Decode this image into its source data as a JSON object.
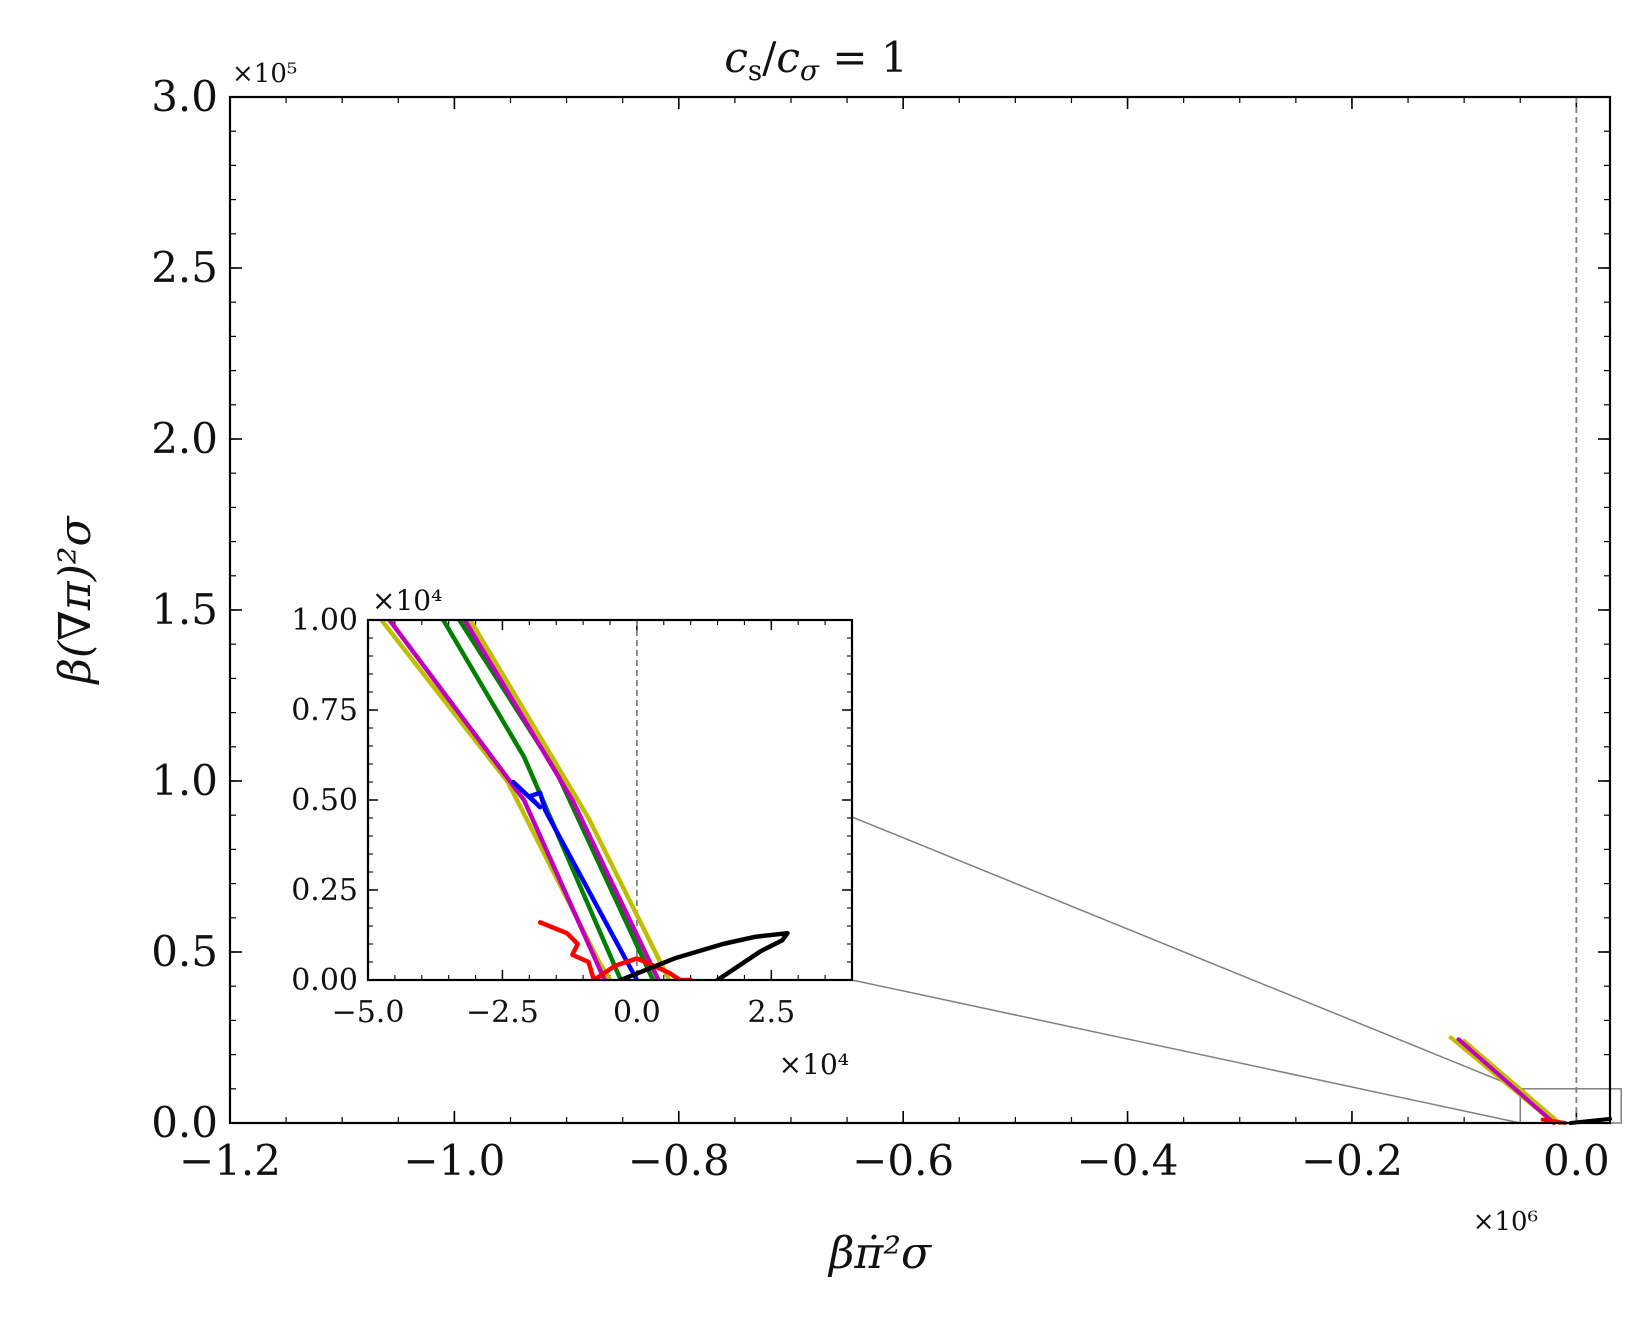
{
  "chart_data": {
    "type": "line",
    "title": "c_s/c_σ = 1",
    "title_parts": {
      "a": "c",
      "a_sub": "s",
      "slash": "/",
      "b": "c",
      "b_sub": "σ",
      "eq": " = 1"
    },
    "xlabel": "βπ̇²σ",
    "ylabel": "β(∇π)²σ",
    "x_multiplier": "×10⁶",
    "y_multiplier": "×10⁵",
    "xlim": [
      -1.2,
      0.03
    ],
    "ylim": [
      0.0,
      3.0
    ],
    "xticks": [
      "−1.2",
      "−1.0",
      "−0.8",
      "−0.6",
      "−0.4",
      "−0.2",
      "0.0"
    ],
    "xtick_values": [
      -1.2,
      -1.0,
      -0.8,
      -0.6,
      -0.4,
      -0.2,
      0.0
    ],
    "yticks": [
      "0.0",
      "0.5",
      "1.0",
      "1.5",
      "2.0",
      "2.5",
      "3.0"
    ],
    "ytick_values": [
      0.0,
      0.5,
      1.0,
      1.5,
      2.0,
      2.5,
      3.0
    ],
    "vline_x": 0.0,
    "colors": {
      "red": "#ff0000",
      "black": "#000000",
      "blue": "#0000ff",
      "green": "#007f00",
      "magenta": "#bf00bf",
      "yellow": "#bfbf00",
      "guide": "#808080"
    },
    "main_series": [
      {
        "name": "yellow-outer",
        "color": "yellow",
        "x": [
          -0.112,
          -0.02
        ],
        "y": [
          0.25,
          0.0
        ]
      },
      {
        "name": "yellow-inner",
        "color": "yellow",
        "x": [
          -0.1,
          -0.015
        ],
        "y": [
          0.24,
          0.0
        ]
      },
      {
        "name": "magenta",
        "color": "magenta",
        "x": [
          -0.105,
          -0.02
        ],
        "y": [
          0.245,
          0.0
        ]
      },
      {
        "name": "red",
        "color": "red",
        "x": [
          -0.03,
          -0.01
        ],
        "y": [
          0.01,
          0.0
        ]
      },
      {
        "name": "black",
        "color": "black",
        "x": [
          -0.005,
          0.03
        ],
        "y": [
          0.0,
          0.012
        ]
      }
    ],
    "zoom_box": {
      "x": [
        -0.05,
        0.04
      ],
      "y": [
        0.0,
        0.1
      ]
    },
    "inset": {
      "x_multiplier": "×10⁴",
      "y_multiplier": "×10⁴",
      "xlim": [
        -5.0,
        4.0
      ],
      "ylim": [
        0.0,
        1.0
      ],
      "xticks": [
        "−5.0",
        "−2.5",
        "0.0",
        "2.5"
      ],
      "xtick_values": [
        -5.0,
        -2.5,
        0.0,
        2.5
      ],
      "yticks": [
        "0.00",
        "0.25",
        "0.50",
        "0.75",
        "1.00"
      ],
      "ytick_values": [
        0.0,
        0.25,
        0.5,
        0.75,
        1.0
      ],
      "vline_x": 0.0,
      "series": [
        {
          "name": "yellow-left",
          "color": "yellow",
          "x": [
            -4.75,
            -2.4,
            -0.7,
            -0.5
          ],
          "y": [
            1.0,
            0.55,
            0.05,
            0.0
          ]
        },
        {
          "name": "magenta-left",
          "color": "magenta",
          "x": [
            -4.6,
            -2.1,
            -0.6
          ],
          "y": [
            1.0,
            0.5,
            0.0
          ]
        },
        {
          "name": "green-left",
          "color": "green",
          "x": [
            -3.6,
            -2.1,
            -0.3
          ],
          "y": [
            1.0,
            0.62,
            0.0
          ]
        },
        {
          "name": "blue",
          "color": "blue",
          "x": [
            -2.3,
            -1.8,
            -2.0,
            -1.8,
            -1.7,
            0.0
          ],
          "y": [
            0.55,
            0.48,
            0.51,
            0.52,
            0.47,
            0.0
          ]
        },
        {
          "name": "green-right",
          "color": "green",
          "x": [
            -3.3,
            -1.5,
            0.3
          ],
          "y": [
            1.0,
            0.58,
            0.0
          ]
        },
        {
          "name": "magenta-right",
          "color": "magenta",
          "x": [
            -3.2,
            -1.2,
            0.4
          ],
          "y": [
            1.0,
            0.5,
            0.0
          ]
        },
        {
          "name": "yellow-right",
          "color": "yellow",
          "x": [
            -3.1,
            -0.9,
            0.6
          ],
          "y": [
            1.0,
            0.45,
            0.0
          ]
        },
        {
          "name": "red",
          "color": "red",
          "x": [
            -1.8,
            -1.3,
            -1.1,
            -1.2,
            -0.9,
            -0.8,
            -0.4,
            0.0,
            0.3,
            0.6,
            0.8,
            1.0
          ],
          "y": [
            0.16,
            0.13,
            0.1,
            0.07,
            0.05,
            0.0,
            0.04,
            0.06,
            0.04,
            0.02,
            0.0,
            0.0
          ]
        },
        {
          "name": "black",
          "color": "black",
          "x": [
            -0.3,
            0.7,
            1.6,
            2.2,
            2.8,
            2.7,
            2.3,
            1.9,
            1.5
          ],
          "y": [
            0.0,
            0.06,
            0.1,
            0.12,
            0.13,
            0.11,
            0.08,
            0.04,
            0.0
          ]
        }
      ]
    }
  }
}
